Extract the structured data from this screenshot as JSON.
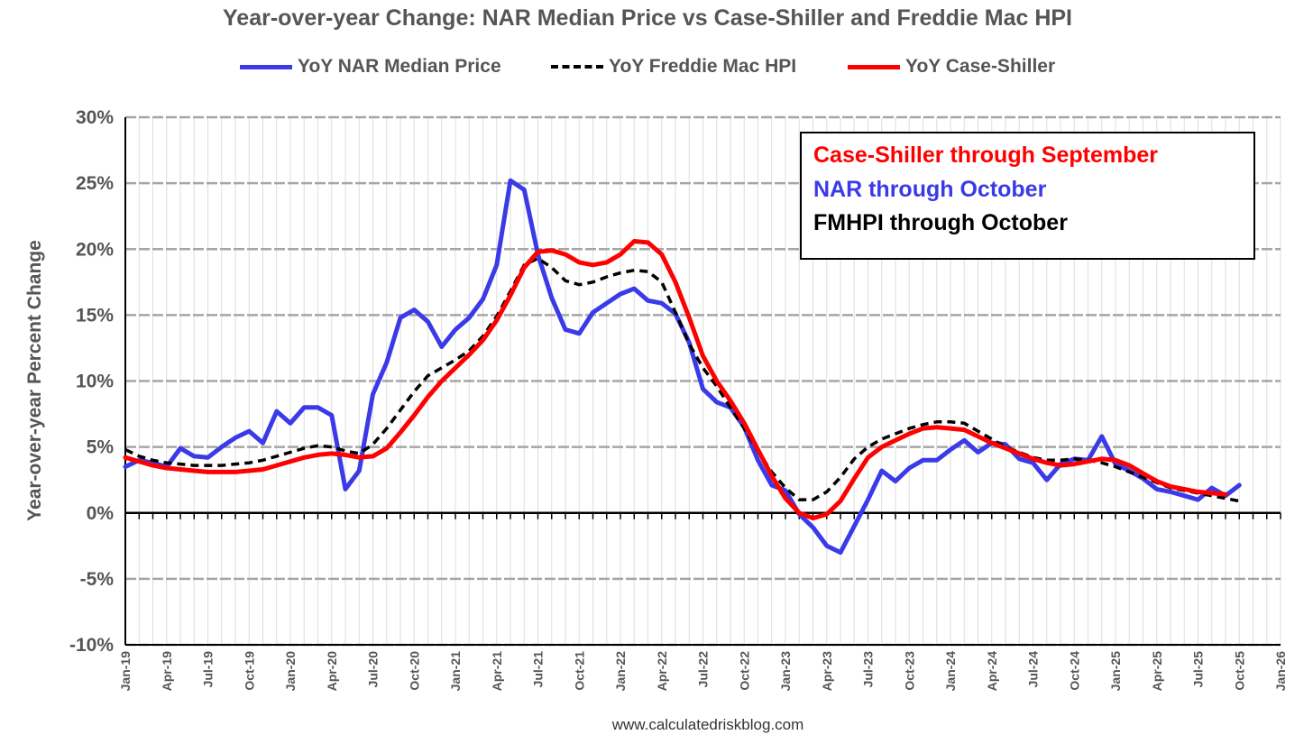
{
  "chart_data": {
    "type": "line",
    "title": "Year-over-year Change: NAR Median Price vs Case-Shiller and Freddie Mac HPI",
    "xlabel": "",
    "ylabel": "Year-over-year Percent Change",
    "ylim": [
      -10,
      30
    ],
    "y_ticks": [
      "30%",
      "25%",
      "20%",
      "15%",
      "10%",
      "5%",
      "0%",
      "-5%",
      "-10%"
    ],
    "y_tick_values": [
      30,
      25,
      20,
      15,
      10,
      5,
      0,
      -5,
      -10
    ],
    "x_start": "Jan-19",
    "x_ticks": [
      "Jan-19",
      "Apr-19",
      "Jul-19",
      "Oct-19",
      "Jan-20",
      "Apr-20",
      "Jul-20",
      "Oct-20",
      "Jan-21",
      "Apr-21",
      "Jul-21",
      "Oct-21",
      "Jan-22",
      "Apr-22",
      "Jul-22",
      "Oct-22",
      "Jan-23",
      "Apr-23",
      "Jul-23",
      "Oct-23",
      "Jan-24",
      "Apr-24",
      "Jul-24",
      "Oct-24",
      "Jan-25",
      "Apr-25",
      "Jul-25",
      "Oct-25",
      "Jan-26"
    ],
    "grid": true,
    "legend_position": "top",
    "series": [
      {
        "name": "YoY NAR Median Price",
        "color": "#3a3ae8",
        "style": "solid",
        "values": [
          3.5,
          4.0,
          3.8,
          3.5,
          4.9,
          4.3,
          4.2,
          5.0,
          5.7,
          6.2,
          5.3,
          7.7,
          6.8,
          8.0,
          8.0,
          7.4,
          1.8,
          3.2,
          9.0,
          11.4,
          14.8,
          15.4,
          14.5,
          12.6,
          13.9,
          14.8,
          16.2,
          18.8,
          25.2,
          24.5,
          19.6,
          16.3,
          13.9,
          13.6,
          15.2,
          15.9,
          16.6,
          17.0,
          16.1,
          15.9,
          15.1,
          12.9,
          9.4,
          8.4,
          8.0,
          6.5,
          4.0,
          2.1,
          1.7,
          -0.1,
          -1.1,
          -2.5,
          -3.0,
          -1.0,
          1.0,
          3.2,
          2.4,
          3.4,
          4.0,
          4.0,
          4.8,
          5.5,
          4.6,
          5.3,
          5.2,
          4.1,
          3.8,
          2.5,
          3.7,
          4.1,
          4.0,
          5.8,
          3.7,
          3.2,
          2.6,
          1.8,
          1.6,
          1.3,
          1.0,
          1.9,
          1.3,
          2.1
        ]
      },
      {
        "name": "YoY Freddie Mac HPI",
        "color": "#000000",
        "style": "dashed",
        "values": [
          4.8,
          4.3,
          4.0,
          3.8,
          3.7,
          3.6,
          3.6,
          3.6,
          3.7,
          3.8,
          4.0,
          4.3,
          4.6,
          4.9,
          5.1,
          5.0,
          4.7,
          4.5,
          5.2,
          6.4,
          7.8,
          9.2,
          10.4,
          11.0,
          11.6,
          12.3,
          13.4,
          14.9,
          16.8,
          18.8,
          19.3,
          18.6,
          17.6,
          17.3,
          17.5,
          17.9,
          18.2,
          18.4,
          18.3,
          17.5,
          15.2,
          12.8,
          11.0,
          9.6,
          8.0,
          6.4,
          4.7,
          3.1,
          1.9,
          1.0,
          1.0,
          1.6,
          2.7,
          4.1,
          5.0,
          5.6,
          6.0,
          6.4,
          6.7,
          6.9,
          6.9,
          6.8,
          6.2,
          5.6,
          5.0,
          4.6,
          4.2,
          4.0,
          4.0,
          4.1,
          4.0,
          3.8,
          3.5,
          3.1,
          2.7,
          2.3,
          1.9,
          1.7,
          1.5,
          1.3,
          1.1,
          0.9
        ]
      },
      {
        "name": "YoY Case-Shiller",
        "color": "#ff0000",
        "style": "solid",
        "values": [
          4.2,
          3.9,
          3.6,
          3.4,
          3.3,
          3.2,
          3.1,
          3.1,
          3.1,
          3.2,
          3.3,
          3.6,
          3.9,
          4.2,
          4.4,
          4.5,
          4.4,
          4.2,
          4.3,
          4.9,
          6.1,
          7.4,
          8.8,
          10.0,
          11.0,
          12.0,
          13.1,
          14.6,
          16.5,
          18.6,
          19.8,
          19.9,
          19.6,
          19.0,
          18.8,
          19.0,
          19.6,
          20.6,
          20.5,
          19.6,
          17.5,
          14.8,
          11.9,
          10.0,
          8.5,
          6.8,
          4.8,
          2.8,
          1.1,
          0.0,
          -0.4,
          -0.1,
          0.9,
          2.6,
          4.2,
          5.0,
          5.5,
          6.0,
          6.4,
          6.5,
          6.4,
          6.3,
          5.8,
          5.3,
          4.9,
          4.5,
          4.1,
          3.8,
          3.6,
          3.7,
          3.9,
          4.1,
          4.0,
          3.6,
          3.0,
          2.4,
          2.0,
          1.8,
          1.6,
          1.5,
          1.4
        ]
      }
    ],
    "annotations": [
      {
        "text": "Case-Shiller through September",
        "color": "#ff0000"
      },
      {
        "text": "NAR through October",
        "color": "#3a3ae8"
      },
      {
        "text": "FMHPI through October",
        "color": "#000000"
      }
    ]
  },
  "watermark": "www.calculatedriskblog.com"
}
